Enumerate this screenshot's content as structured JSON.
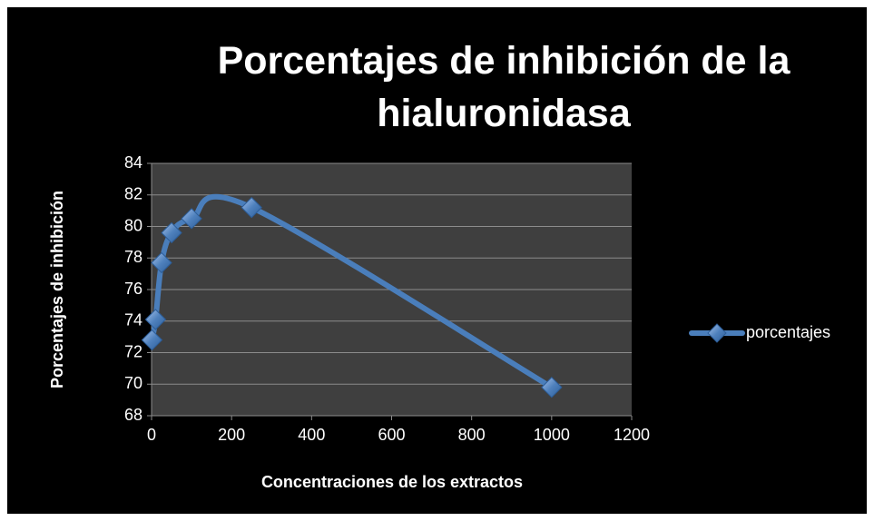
{
  "chart_data": {
    "type": "scatter",
    "title": "Porcentajes de inhibición de la hialuronidasa",
    "x_label": "Concentraciones de los extractos",
    "y_label": "Porcentajes de  inhibición",
    "series": [
      {
        "name": "porcentajes",
        "color": "#4a7ebb",
        "x": [
          1,
          10,
          25,
          50,
          100,
          250,
          1000
        ],
        "values": [
          72.8,
          74.1,
          77.7,
          79.6,
          80.5,
          81.2,
          69.8
        ]
      }
    ],
    "smooth": true,
    "xlim": [
      0,
      1200
    ],
    "xticks": [
      0,
      200,
      400,
      600,
      800,
      1000,
      1200
    ],
    "ylim": [
      68,
      84
    ],
    "yticks": [
      68,
      70,
      72,
      74,
      76,
      78,
      80,
      82,
      84
    ],
    "grid": true,
    "legend": "right"
  }
}
